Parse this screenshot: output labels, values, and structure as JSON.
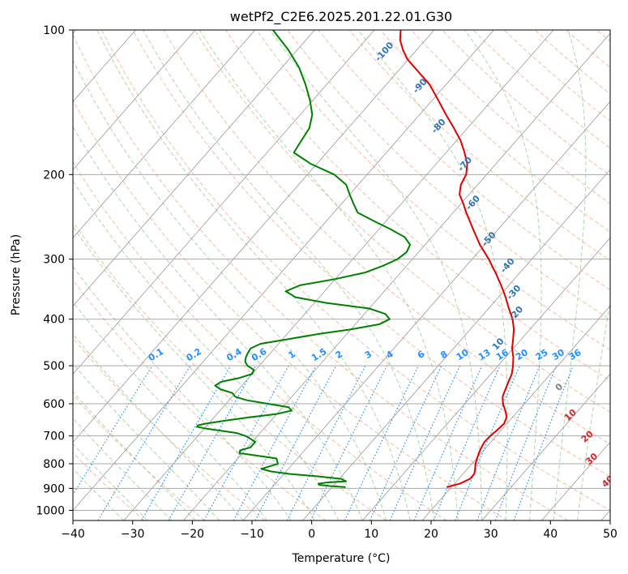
{
  "chart_data": {
    "type": "line",
    "title": "wetPf2_C2E6.2025.201.22.01.G30",
    "xlabel": "Temperature (°C)",
    "ylabel": "Pressure (hPa)",
    "xlim": [
      -40,
      50
    ],
    "ylim": [
      1050,
      100
    ],
    "y_scale": "log",
    "grid": true,
    "x_ticks": [
      -40,
      -30,
      -20,
      -10,
      0,
      10,
      20,
      30,
      40,
      50
    ],
    "y_ticks": [
      100,
      200,
      300,
      400,
      500,
      600,
      700,
      800,
      900,
      1000
    ],
    "series": [
      {
        "color": "#e00000",
        "pressure": [
          895,
          880,
          860,
          840,
          820,
          800,
          780,
          760,
          740,
          720,
          700,
          680,
          660,
          640,
          620,
          600,
          580,
          560,
          540,
          520,
          500,
          480,
          460,
          440,
          420,
          400,
          380,
          360,
          340,
          320,
          300,
          280,
          260,
          240,
          230,
          220,
          210,
          200,
          190,
          180,
          170,
          160,
          150,
          140,
          130,
          120,
          115,
          110,
          105,
          100
        ],
        "temperature": [
          19.2,
          20.9,
          21.9,
          21.9,
          21.3,
          20.6,
          20.1,
          19.6,
          19.2,
          18.9,
          19.0,
          19.3,
          19.5,
          19.0,
          17.8,
          16.4,
          15.3,
          14.7,
          14.1,
          13.5,
          12.5,
          11.3,
          9.8,
          8.6,
          7.3,
          5.6,
          3.4,
          1.2,
          -1.3,
          -4.1,
          -7.2,
          -10.8,
          -14.2,
          -17.8,
          -19.6,
          -21.6,
          -22.8,
          -23.4,
          -24.8,
          -26.9,
          -29.3,
          -32.3,
          -35.6,
          -39.0,
          -42.7,
          -47.6,
          -50.2,
          -52.3,
          -54.2,
          -55.6
        ]
      },
      {
        "color": "#008000",
        "pressure": [
          895,
          890,
          885,
          880,
          875,
          870,
          860,
          850,
          840,
          830,
          820,
          810,
          800,
          790,
          780,
          760,
          750,
          740,
          720,
          700,
          690,
          680,
          675,
          670,
          665,
          660,
          650,
          640,
          630,
          620,
          610,
          600,
          590,
          580,
          570,
          560,
          550,
          540,
          530,
          520,
          510,
          500,
          490,
          480,
          470,
          460,
          450,
          440,
          430,
          420,
          410,
          400,
          390,
          380,
          370,
          360,
          350,
          340,
          330,
          320,
          310,
          300,
          290,
          280,
          270,
          260,
          250,
          240,
          230,
          220,
          210,
          200,
          190,
          180,
          170,
          160,
          150,
          140,
          130,
          120,
          110,
          100
        ],
        "temperature": [
          2.3,
          -0.5,
          -2.5,
          -2.8,
          -1.5,
          1.5,
          0.3,
          -3.8,
          -9.0,
          -12.5,
          -14.5,
          -13.5,
          -12.5,
          -13.0,
          -13.5,
          -20.5,
          -20.8,
          -19.5,
          -19.5,
          -22.0,
          -24.0,
          -28.0,
          -30.0,
          -31.5,
          -31.5,
          -30.5,
          -27.5,
          -24.0,
          -20.0,
          -18.0,
          -19.0,
          -23.0,
          -27.0,
          -29.5,
          -30.5,
          -33.0,
          -34.5,
          -34.0,
          -31.5,
          -30.0,
          -30.3,
          -32.0,
          -33.0,
          -33.5,
          -33.8,
          -34.0,
          -33.0,
          -29.0,
          -25.0,
          -20.0,
          -16.0,
          -15.0,
          -16.5,
          -20.0,
          -28.0,
          -34.0,
          -36.5,
          -35.0,
          -30.0,
          -26.0,
          -24.0,
          -22.5,
          -22.0,
          -22.5,
          -24.5,
          -28.0,
          -32.0,
          -36.0,
          -38.0,
          -40.0,
          -42.0,
          -45.5,
          -51.0,
          -55.5,
          -56.0,
          -56.5,
          -58.0,
          -60.5,
          -63.5,
          -67.0,
          -71.5,
          -77.0
        ]
      }
    ],
    "dry_adiabat_labels": [
      "0",
      "10",
      "20",
      "30",
      "40"
    ],
    "moist_adiabat_labels": [
      "10",
      "-20",
      "-30",
      "-40",
      "-50",
      "-60",
      "-70",
      "-80",
      "-90",
      "-100"
    ],
    "mixing_ratio_labels": [
      "0.1",
      "0.2",
      "0.4",
      "0.6",
      "1",
      "1.5",
      "2",
      "3",
      "4",
      "6",
      "8",
      "10",
      "13",
      "16",
      "20",
      "25",
      "30",
      "36"
    ],
    "colors": {
      "temperature": "#e00000",
      "dewpoint": "#008000",
      "isotherm": "#999999",
      "isobar": "#aaaaaa",
      "dry_adiabat": "#f4a582",
      "moist_adiabat": "#8fc98f",
      "mixing_ratio": "#1e90ff",
      "dry_label": "#d62728",
      "moist_label": "#2f74b5"
    }
  }
}
